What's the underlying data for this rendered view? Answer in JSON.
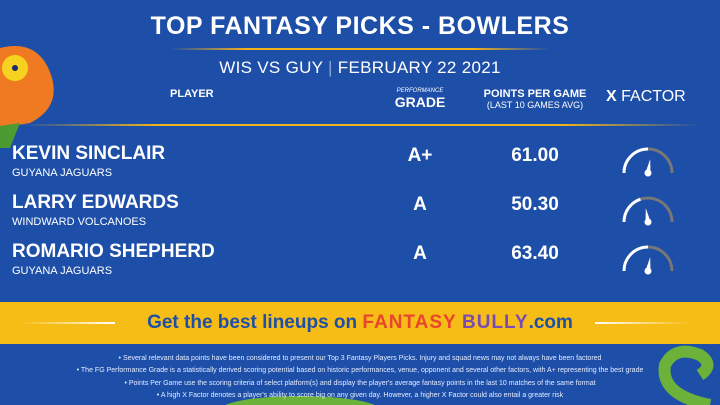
{
  "header": {
    "title": "TOP FANTASY PICKS - BOWLERS",
    "match": "WIS VS GUY",
    "date": "FEBRUARY 22 2021"
  },
  "columns": {
    "player": "PLAYER",
    "grade_small": "PERFORMANCE",
    "grade": "GRADE",
    "ppg": "POINTS PER GAME",
    "ppg_sub": "(LAST 10 GAMES AVG)",
    "xfactor_x": "X",
    "xfactor": "FACTOR"
  },
  "players": [
    {
      "name": "KEVIN SINCLAIR",
      "team": "GUYANA JAGUARS",
      "grade": "A+",
      "ppg": "61.00",
      "xfactor_level": 0.5
    },
    {
      "name": "LARRY EDWARDS",
      "team": "WINDWARD VOLCANOES",
      "grade": "A",
      "ppg": "50.30",
      "xfactor_level": 0.4
    },
    {
      "name": "ROMARIO SHEPHERD",
      "team": "GUYANA JAGUARS",
      "grade": "A",
      "ppg": "63.40",
      "xfactor_level": 0.5
    }
  ],
  "cta": {
    "prefix": "Get the best lineups on",
    "brand1": "FANTASY",
    "brand2": "BULLY",
    "suffix": ".com"
  },
  "notes": [
    "Several relevant data points have been considered to present our Top 3 Fantasy Players Picks. Injury and squad news may not always have been factored",
    "The FG Performance Grade is a statistically derived scoring potential based on historic performances, venue, opponent and several other factors, with A+ representing the best grade",
    "Points Per Game use the scoring criteria of select platform(s) and display the player's average fantasy points in the last 10 matches of the same format",
    "A high X Factor denotes a player's ability to score big on any given day. However, a higher X Factor could also entail a greater risk"
  ],
  "colors": {
    "background": "#1d4fa8",
    "accent": "#f7bd17",
    "gauge_track": "#777777"
  }
}
